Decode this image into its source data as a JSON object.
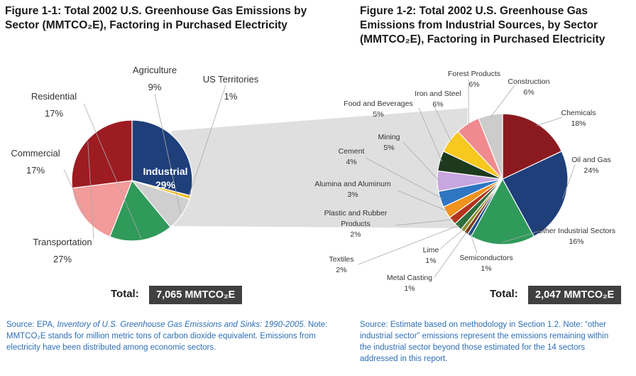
{
  "titles": {
    "fig1": "Figure 1-1: Total 2002 U.S. Greenhouse Gas Emissions by Sector (MMTCO₂E), Factoring in Purchased Electricity",
    "fig2": "Figure 1-2: Total 2002 U.S. Greenhouse Gas Emissions from Industrial Sources, by Sector (MMTCO₂E), Factoring in Purchased Electricity"
  },
  "chart_data": [
    {
      "type": "pie",
      "title": "Figure 1-1: Total 2002 U.S. Greenhouse Gas Emissions by Sector (MMTCO₂E), Factoring in Purchased Electricity",
      "slices": [
        {
          "name": "Industrial",
          "value": 29,
          "label": "29%",
          "color": "#1f3f7a"
        },
        {
          "name": "US Territories",
          "value": 1,
          "label": "1%",
          "color": "#f2c12e"
        },
        {
          "name": "Agriculture",
          "value": 9,
          "label": "9%",
          "color": "#cfcfcf"
        },
        {
          "name": "Residential",
          "value": 17,
          "label": "17%",
          "color": "#2f9a5a"
        },
        {
          "name": "Commercial",
          "value": 17,
          "label": "17%",
          "color": "#f39a9a"
        },
        {
          "name": "Transportation",
          "value": 27,
          "label": "27%",
          "color": "#9c1c22"
        }
      ],
      "total": "7,065 MMTCO₂E"
    },
    {
      "type": "pie",
      "title": "Figure 1-2: Total 2002 U.S. Greenhouse Gas Emissions from Industrial Sources, by Sector (MMTCO₂E), Factoring in Purchased Electricity",
      "slices": [
        {
          "name": "Chemicals",
          "value": 18,
          "label": "18%",
          "color": "#8b1a1f"
        },
        {
          "name": "Oil and Gas",
          "value": 24,
          "label": "24%",
          "color": "#1f3f7a"
        },
        {
          "name": "Other Industrial Sectors",
          "value": 16,
          "label": "16%",
          "color": "#2f9a5a"
        },
        {
          "name": "Semiconductors",
          "value": 1,
          "label": "1%",
          "color": "#1f4e8c"
        },
        {
          "name": "Metal Casting",
          "value": 1,
          "label": "1%",
          "color": "#7a3b1a"
        },
        {
          "name": "Lime",
          "value": 1,
          "label": "1%",
          "color": "#8a8a2a"
        },
        {
          "name": "Textiles",
          "value": 2,
          "label": "2%",
          "color": "#2f6e3c"
        },
        {
          "name": "Plastic and Rubber Products",
          "value": 2,
          "label": "2%",
          "color": "#b5341c"
        },
        {
          "name": "Alumina and Aluminum",
          "value": 3,
          "label": "3%",
          "color": "#f0921e"
        },
        {
          "name": "Cement",
          "value": 4,
          "label": "4%",
          "color": "#2e75c2"
        },
        {
          "name": "Mining",
          "value": 5,
          "label": "5%",
          "color": "#c8a6e0"
        },
        {
          "name": "Food and Beverages",
          "value": 5,
          "label": "5%",
          "color": "#1e3a1e"
        },
        {
          "name": "Iron and Steel",
          "value": 6,
          "label": "6%",
          "color": "#f7c81e"
        },
        {
          "name": "Forest Products",
          "value": 6,
          "label": "6%",
          "color": "#f08a8f"
        },
        {
          "name": "Construction",
          "value": 6,
          "label": "6%",
          "color": "#cccccc"
        }
      ],
      "total": "2,047 MMTCO₂E"
    }
  ],
  "totals": {
    "label": "Total:",
    "fig1_value": "7,065 MMTCO₂E",
    "fig2_value": "2,047 MMTCO₂E"
  },
  "sources": {
    "left_prefix": "Source: EPA, ",
    "left_italic": "Inventory of U.S. Greenhouse Gas Emissions and Sinks: 1990-2005.",
    "left_rest": "Note: MMTCO₂E stands for million metric tons of carbon dioxide equivalent. Emissions from electricity have been distributed among economic sectors.",
    "right": "Source: Estimate based on methodology in Section 1.2. Note: “other industrial sector” emissions represent the emissions remaining within the industrial sector beyond those estimated for the 14 sectors addressed in this report."
  }
}
